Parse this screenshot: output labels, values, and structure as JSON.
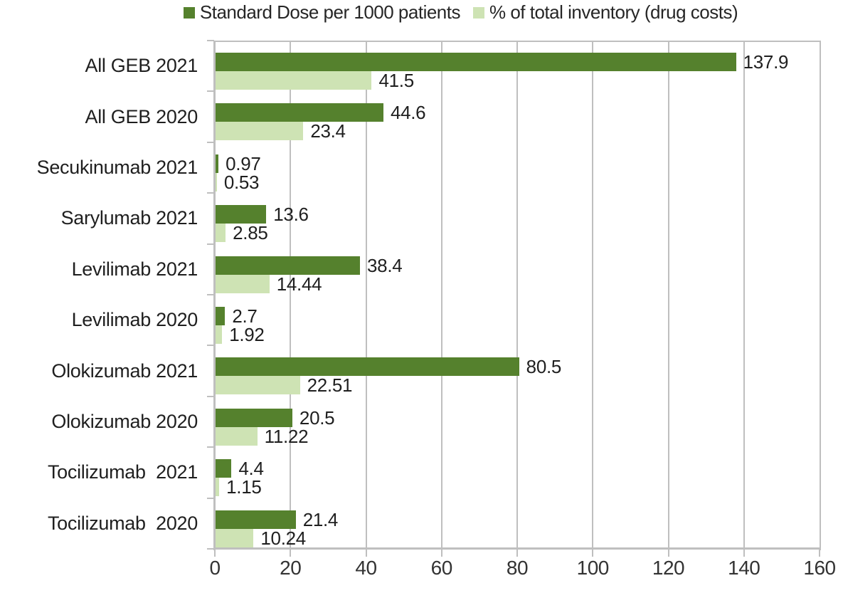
{
  "legend": {
    "series1_label": "Standard Dose per 1000 patients",
    "series2_label": "% of total inventory (drug costs)"
  },
  "colors": {
    "dark_green": "#55812d",
    "light_green": "#cee3b4",
    "grid_gray": "#bfbfbf",
    "text": "#1f1f1f"
  },
  "chart_data": {
    "type": "bar",
    "orientation": "horizontal",
    "title": "",
    "xlabel": "",
    "ylabel": "",
    "xlim": [
      0,
      160
    ],
    "xticks": [
      0,
      20,
      40,
      60,
      80,
      100,
      120,
      140,
      160
    ],
    "grid": "vertical",
    "legend_position": "top",
    "categories": [
      "All GEB 2021",
      "All GEB 2020",
      "Secukinumab 2021",
      "Sarylumab 2021",
      "Levilimab 2021",
      "Levilimab 2020",
      "Olokizumab 2021",
      "Olokizumab 2020",
      "Tocilizumab  2021",
      "Tocilizumab  2020"
    ],
    "series": [
      {
        "name": "Standard Dose per 1000 patients",
        "color": "#55812d",
        "values": [
          137.9,
          44.6,
          0.97,
          13.6,
          38.4,
          2.7,
          80.5,
          20.5,
          4.4,
          21.4
        ]
      },
      {
        "name": "% of total inventory (drug costs)",
        "color": "#cee3b4",
        "values": [
          41.5,
          23.4,
          0.53,
          2.85,
          14.44,
          1.92,
          22.51,
          11.22,
          1.15,
          10.24
        ]
      }
    ]
  }
}
